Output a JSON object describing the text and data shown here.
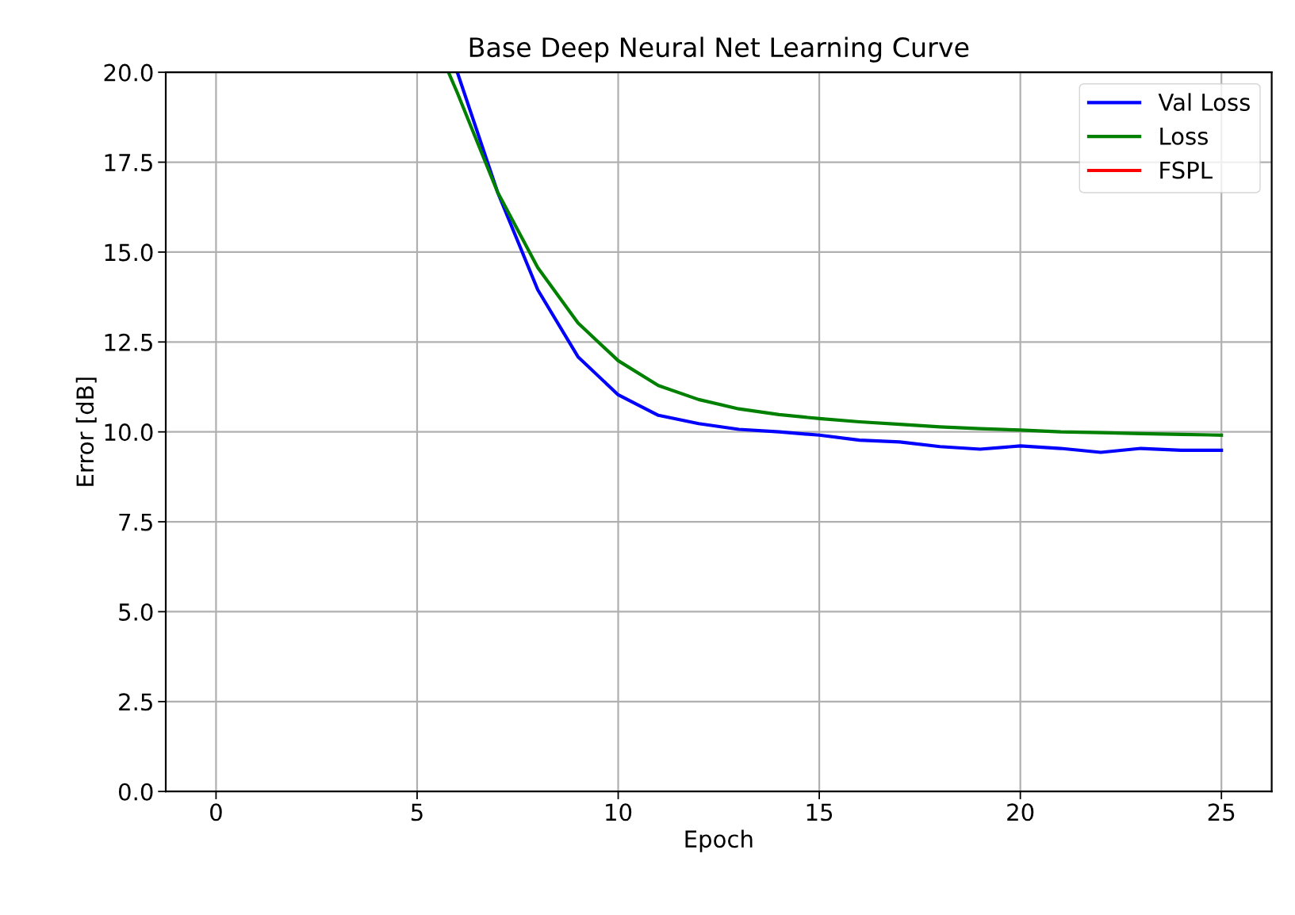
{
  "chart_data": {
    "type": "line",
    "title": "Base Deep Neural Net Learning Curve",
    "xlabel": "Epoch",
    "ylabel": "Error [dB]",
    "xlim": [
      -1.25,
      26.25
    ],
    "xticks": [
      0,
      5,
      10,
      15,
      20,
      25
    ],
    "ylim": [
      0,
      20
    ],
    "yticks": [
      {
        "value": 0,
        "label": "0.0"
      },
      {
        "value": 2.5,
        "label": "2.5"
      },
      {
        "value": 5,
        "label": "5.0"
      },
      {
        "value": 7.5,
        "label": "7.5"
      },
      {
        "value": 10,
        "label": "10.0"
      },
      {
        "value": 12.5,
        "label": "12.5"
      },
      {
        "value": 15,
        "label": "15.0"
      },
      {
        "value": 17.5,
        "label": "17.5"
      },
      {
        "value": 20,
        "label": "20.0"
      }
    ],
    "grid": true,
    "legend": "top right",
    "series": [
      {
        "name": "Val Loss",
        "color": "#0000ff",
        "x": [
          6,
          7,
          8,
          9,
          10,
          11,
          12,
          13,
          14,
          15,
          16,
          17,
          18,
          19,
          20,
          21,
          22,
          23,
          24,
          25
        ],
        "values": [
          20,
          16.67,
          13.95,
          12.09,
          11.03,
          10.46,
          10.23,
          10.07,
          10.0,
          9.91,
          9.77,
          9.72,
          9.59,
          9.52,
          9.61,
          9.54,
          9.43,
          9.54,
          9.49,
          9.49
        ]
      },
      {
        "name": "Loss",
        "color": "#008000",
        "x": [
          5.78,
          6,
          7,
          8,
          9,
          10,
          11,
          12,
          13,
          14,
          15,
          16,
          17,
          18,
          19,
          20,
          21,
          22,
          23,
          24,
          25
        ],
        "values": [
          20,
          19.43,
          16.67,
          14.57,
          13.03,
          11.98,
          11.29,
          10.9,
          10.64,
          10.48,
          10.37,
          10.28,
          10.21,
          10.14,
          10.09,
          10.05,
          10.0,
          9.98,
          9.95,
          9.93,
          9.91
        ]
      },
      {
        "name": "FSPL",
        "color": "#ff0000"
      }
    ]
  }
}
